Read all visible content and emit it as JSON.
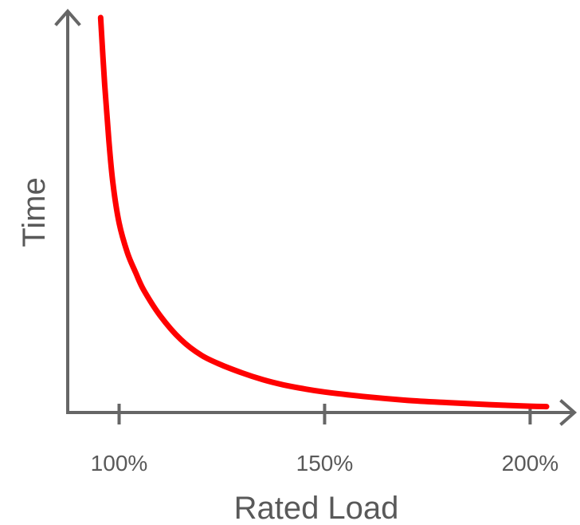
{
  "colors": {
    "curve": "#ff0000",
    "axis": "#666666",
    "text": "#595959"
  },
  "chart_data": {
    "type": "line",
    "title": "",
    "xlabel": "Rated Load",
    "ylabel": "Time",
    "x_ticks": [
      {
        "value": 100,
        "label": "100%"
      },
      {
        "value": 150,
        "label": "150%"
      },
      {
        "value": 200,
        "label": "200%"
      }
    ],
    "xlim": [
      87.5,
      210
    ],
    "ylim": [
      0,
      1
    ],
    "grid": false,
    "legend": "none",
    "series": [
      {
        "x": [
          95.5,
          96.5,
          97.5,
          98.5,
          100,
          102,
          104,
          106,
          110,
          115,
          120,
          125,
          130,
          135,
          140,
          145,
          150,
          160,
          170,
          180,
          190,
          200,
          204
        ],
        "y": [
          1.0,
          0.83,
          0.69,
          0.58,
          0.48,
          0.405,
          0.355,
          0.31,
          0.245,
          0.185,
          0.145,
          0.12,
          0.1,
          0.083,
          0.07,
          0.06,
          0.052,
          0.04,
          0.031,
          0.025,
          0.02,
          0.016,
          0.015
        ]
      }
    ]
  }
}
